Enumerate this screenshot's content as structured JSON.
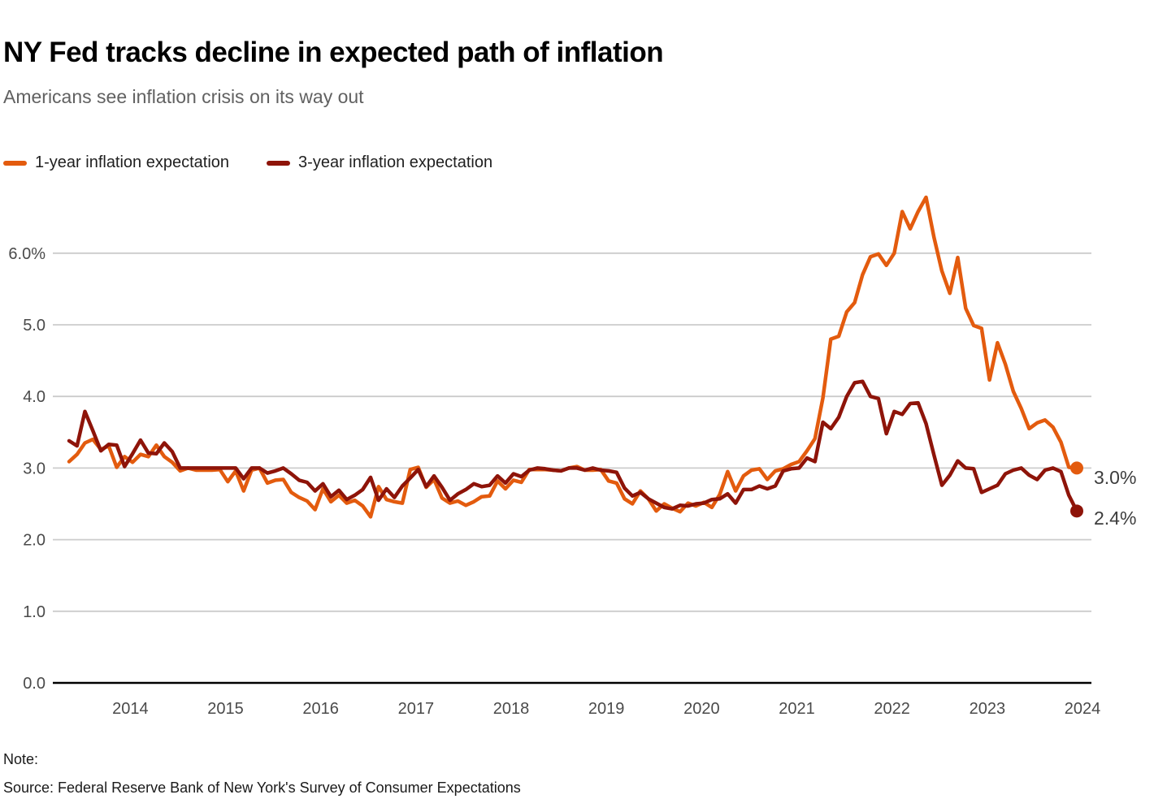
{
  "title": "NY Fed tracks decline in expected path of inflation",
  "subtitle": "Americans see inflation crisis on its way out",
  "footer": {
    "note_label": "Note:",
    "source": "Source: Federal Reserve Bank of New York's Survey of Consumer Expectations"
  },
  "colors": {
    "one_year": "#e35b0e",
    "three_year": "#8e1409",
    "gridline": "#cccccc",
    "axis_line": "#000000",
    "tick_label": "#4a4a4a",
    "end_label": "#3d3d3d"
  },
  "chart_data": {
    "type": "line",
    "title": "NY Fed tracks decline in expected path of inflation",
    "subtitle": "Americans see inflation crisis on its way out",
    "x_unit": "month",
    "x_start": "2013-06",
    "x_end": "2024-01",
    "x_tick_years": [
      "2014",
      "2015",
      "2016",
      "2017",
      "2018",
      "2019",
      "2020",
      "2021",
      "2022",
      "2023",
      "2024"
    ],
    "y_tick_labels": [
      "0.0",
      "1.0",
      "2.0",
      "3.0",
      "4.0",
      "5.0",
      "6.0%"
    ],
    "y_tick_values": [
      0,
      1,
      2,
      3,
      4,
      5,
      6
    ],
    "ylim": [
      0,
      6.8
    ],
    "grid": "horizontal-only",
    "legend_position": "top-left",
    "series": [
      {
        "name": "1-year inflation expectation",
        "color": "#e35b0e",
        "end_label": "3.0%",
        "end_value": 3.0,
        "values": [
          3.09,
          3.19,
          3.35,
          3.4,
          3.26,
          3.31,
          3.01,
          3.16,
          3.08,
          3.19,
          3.16,
          3.32,
          3.16,
          3.08,
          2.96,
          3.0,
          2.97,
          2.97,
          2.97,
          2.98,
          2.81,
          2.96,
          2.68,
          2.97,
          3.0,
          2.79,
          2.83,
          2.84,
          2.66,
          2.59,
          2.54,
          2.42,
          2.71,
          2.53,
          2.62,
          2.51,
          2.55,
          2.47,
          2.32,
          2.74,
          2.56,
          2.53,
          2.51,
          2.98,
          3.01,
          2.73,
          2.84,
          2.58,
          2.51,
          2.54,
          2.48,
          2.53,
          2.6,
          2.61,
          2.82,
          2.71,
          2.83,
          2.8,
          2.98,
          2.98,
          2.98,
          2.97,
          2.96,
          3.0,
          3.02,
          2.97,
          2.97,
          2.98,
          2.82,
          2.79,
          2.57,
          2.5,
          2.68,
          2.57,
          2.4,
          2.5,
          2.44,
          2.39,
          2.51,
          2.47,
          2.52,
          2.45,
          2.63,
          2.95,
          2.68,
          2.89,
          2.97,
          2.99,
          2.84,
          2.96,
          2.99,
          3.05,
          3.09,
          3.24,
          3.41,
          3.98,
          4.8,
          4.84,
          5.18,
          5.31,
          5.7,
          5.95,
          5.99,
          5.83,
          6.0,
          6.58,
          6.34,
          6.58,
          6.78,
          6.22,
          5.75,
          5.44,
          5.94,
          5.23,
          4.99,
          4.95,
          4.23,
          4.75,
          4.45,
          4.07,
          3.83,
          3.55,
          3.63,
          3.67,
          3.57,
          3.36,
          3.01,
          3.0
        ]
      },
      {
        "name": "3-year inflation expectation",
        "color": "#8e1409",
        "end_label": "2.4%",
        "end_value": 2.4,
        "values": [
          3.38,
          3.31,
          3.79,
          3.52,
          3.24,
          3.33,
          3.32,
          3.02,
          3.2,
          3.39,
          3.21,
          3.2,
          3.35,
          3.23,
          3.0,
          3.0,
          3.0,
          3.0,
          3.0,
          3.0,
          3.0,
          3.0,
          2.85,
          3.0,
          3.0,
          2.93,
          2.96,
          3.0,
          2.92,
          2.83,
          2.8,
          2.68,
          2.78,
          2.6,
          2.69,
          2.56,
          2.62,
          2.7,
          2.87,
          2.55,
          2.71,
          2.59,
          2.75,
          2.86,
          2.98,
          2.74,
          2.89,
          2.73,
          2.55,
          2.64,
          2.7,
          2.78,
          2.74,
          2.76,
          2.89,
          2.79,
          2.92,
          2.88,
          2.97,
          3.0,
          2.99,
          2.97,
          2.96,
          3.0,
          3.0,
          2.97,
          3.0,
          2.97,
          2.96,
          2.94,
          2.72,
          2.61,
          2.66,
          2.57,
          2.51,
          2.45,
          2.43,
          2.48,
          2.47,
          2.5,
          2.51,
          2.56,
          2.57,
          2.64,
          2.51,
          2.7,
          2.7,
          2.75,
          2.71,
          2.75,
          2.96,
          2.99,
          3.0,
          3.14,
          3.09,
          3.64,
          3.55,
          3.71,
          4.0,
          4.19,
          4.21,
          4.0,
          3.97,
          3.48,
          3.79,
          3.75,
          3.9,
          3.91,
          3.62,
          3.18,
          2.76,
          2.9,
          3.1,
          3.0,
          2.99,
          2.66,
          2.71,
          2.76,
          2.92,
          2.97,
          3.0,
          2.9,
          2.84,
          2.97,
          3.0,
          2.95,
          2.62,
          2.4
        ]
      }
    ]
  }
}
